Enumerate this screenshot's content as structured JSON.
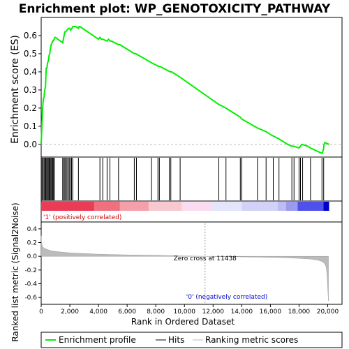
{
  "chart_data": {
    "type": "line",
    "title": "Enrichment plot: WP_GENOTOXICITY_PATHWAY",
    "es_panel": {
      "ylabel": "Enrichment score (ES)",
      "ylim": [
        -0.07,
        0.7
      ],
      "yticks": [
        "0.0",
        "0.1",
        "0.2",
        "0.3",
        "0.4",
        "0.5",
        "0.6"
      ],
      "ytick_values": [
        0.0,
        0.1,
        0.2,
        0.3,
        0.4,
        0.5,
        0.6
      ],
      "series": [
        {
          "name": "Enrichment profile",
          "color": "#00ee00",
          "x": [
            0,
            60,
            100,
            150,
            200,
            250,
            300,
            350,
            400,
            450,
            500,
            550,
            600,
            650,
            700,
            750,
            800,
            850,
            900,
            950,
            1000,
            1500,
            1600,
            1650,
            1700,
            1800,
            1900,
            2000,
            2050,
            2150,
            2200,
            2400,
            2600,
            2650,
            2700,
            4000,
            4100,
            4200,
            4300,
            4600,
            4700,
            4800,
            4900,
            5400,
            5500,
            6500,
            6600,
            7700,
            8200,
            8300,
            9000,
            9100,
            9700,
            12400,
            12900,
            13900,
            14000,
            15100,
            15700,
            16100,
            16600,
            17200,
            17500,
            17600,
            18000,
            18100,
            18200,
            18600,
            18800,
            19600,
            19700,
            19750,
            19800,
            20100
          ],
          "y": [
            0.0,
            0.12,
            0.2,
            0.25,
            0.26,
            0.3,
            0.32,
            0.42,
            0.42,
            0.45,
            0.46,
            0.49,
            0.5,
            0.53,
            0.55,
            0.56,
            0.57,
            0.57,
            0.58,
            0.59,
            0.59,
            0.56,
            0.6,
            0.62,
            0.62,
            0.63,
            0.64,
            0.64,
            0.63,
            0.64,
            0.65,
            0.65,
            0.64,
            0.65,
            0.65,
            0.58,
            0.59,
            0.58,
            0.58,
            0.57,
            0.58,
            0.57,
            0.57,
            0.55,
            0.55,
            0.5,
            0.5,
            0.45,
            0.43,
            0.43,
            0.4,
            0.4,
            0.37,
            0.22,
            0.2,
            0.15,
            0.14,
            0.09,
            0.07,
            0.05,
            0.03,
            0.0,
            -0.01,
            -0.01,
            -0.02,
            -0.01,
            0.0,
            -0.01,
            -0.02,
            -0.05,
            -0.03,
            0.0,
            0.01,
            0.0
          ]
        }
      ]
    },
    "hits_panel": {
      "series_name": "Hits",
      "hit_positions": [
        60,
        130,
        200,
        260,
        320,
        380,
        440,
        500,
        560,
        620,
        680,
        740,
        800,
        860,
        920,
        1500,
        1580,
        1650,
        1720,
        1800,
        1880,
        1960,
        2040,
        2120,
        2200,
        2600,
        4100,
        4300,
        4600,
        4800,
        5400,
        6500,
        6650,
        7700,
        8150,
        8250,
        8950,
        9050,
        9700,
        12400,
        12900,
        13900,
        14000,
        15100,
        15700,
        16200,
        16600,
        17500,
        17650,
        18000,
        18100,
        18250,
        18800,
        19600,
        19720
      ]
    },
    "colorbar": {
      "pos_label": "'1' (positively correlated)",
      "neg_label": "'0' (negatively correlated)",
      "bands": [
        {
          "start": 0,
          "end": 3700,
          "color": "#ea3c56"
        },
        {
          "start": 3700,
          "end": 5500,
          "color": "#f07080"
        },
        {
          "start": 5500,
          "end": 7500,
          "color": "#f4a0ab"
        },
        {
          "start": 7500,
          "end": 9800,
          "color": "#f8c8d0"
        },
        {
          "start": 9800,
          "end": 11900,
          "color": "#fadcf0"
        },
        {
          "start": 11900,
          "end": 14000,
          "color": "#e4e4fa"
        },
        {
          "start": 14000,
          "end": 16500,
          "color": "#d2d2f8"
        },
        {
          "start": 16500,
          "end": 17100,
          "color": "#bcbcf2"
        },
        {
          "start": 17100,
          "end": 17900,
          "color": "#9a9aee"
        },
        {
          "start": 17900,
          "end": 19700,
          "color": "#5050ea"
        },
        {
          "start": 19700,
          "end": 20100,
          "color": "#0000cc"
        }
      ]
    },
    "metric_panel": {
      "ylabel": "Ranked list metric (Signal2Noise)",
      "xlabel": "Rank in Ordered Dataset",
      "ylim": [
        -0.7,
        0.5
      ],
      "yticks": [
        "-0.6",
        "-0.4",
        "-0.2",
        "0.0",
        "0.2",
        "0.4"
      ],
      "ytick_values": [
        -0.6,
        -0.4,
        -0.2,
        0.0,
        0.2,
        0.4
      ],
      "zero_cross_label": "Zero cross at 11438",
      "zero_cross": 11438,
      "x": [
        0,
        20,
        50,
        100,
        200,
        400,
        700,
        1000,
        1500,
        2000,
        3000,
        4000,
        6000,
        8000,
        10000,
        11438,
        13000,
        15000,
        17000,
        18000,
        18800,
        19300,
        19600,
        19800,
        19900,
        19950,
        20000,
        20050
      ],
      "y": [
        0.3,
        0.22,
        0.17,
        0.14,
        0.12,
        0.1,
        0.08,
        0.07,
        0.06,
        0.05,
        0.04,
        0.03,
        0.02,
        0.015,
        0.005,
        0.0,
        -0.005,
        -0.012,
        -0.02,
        -0.03,
        -0.04,
        -0.055,
        -0.075,
        -0.11,
        -0.16,
        -0.25,
        -0.45,
        -0.65
      ]
    },
    "xaxis": {
      "xlim": [
        0,
        21000
      ],
      "xticks": [
        "0",
        "2,000",
        "4,000",
        "6,000",
        "8,000",
        "10,000",
        "12,000",
        "14,000",
        "16,000",
        "18,000",
        "20,000"
      ],
      "xtick_values": [
        0,
        2000,
        4000,
        6000,
        8000,
        10000,
        12000,
        14000,
        16000,
        18000,
        20000
      ]
    },
    "legend": {
      "placement": "bottom",
      "entries": [
        {
          "label": "Enrichment profile",
          "color": "#00ee00"
        },
        {
          "label": "Hits",
          "color": "#000000"
        },
        {
          "label": "Ranking metric scores",
          "color": "#bbbbbb"
        }
      ]
    }
  }
}
